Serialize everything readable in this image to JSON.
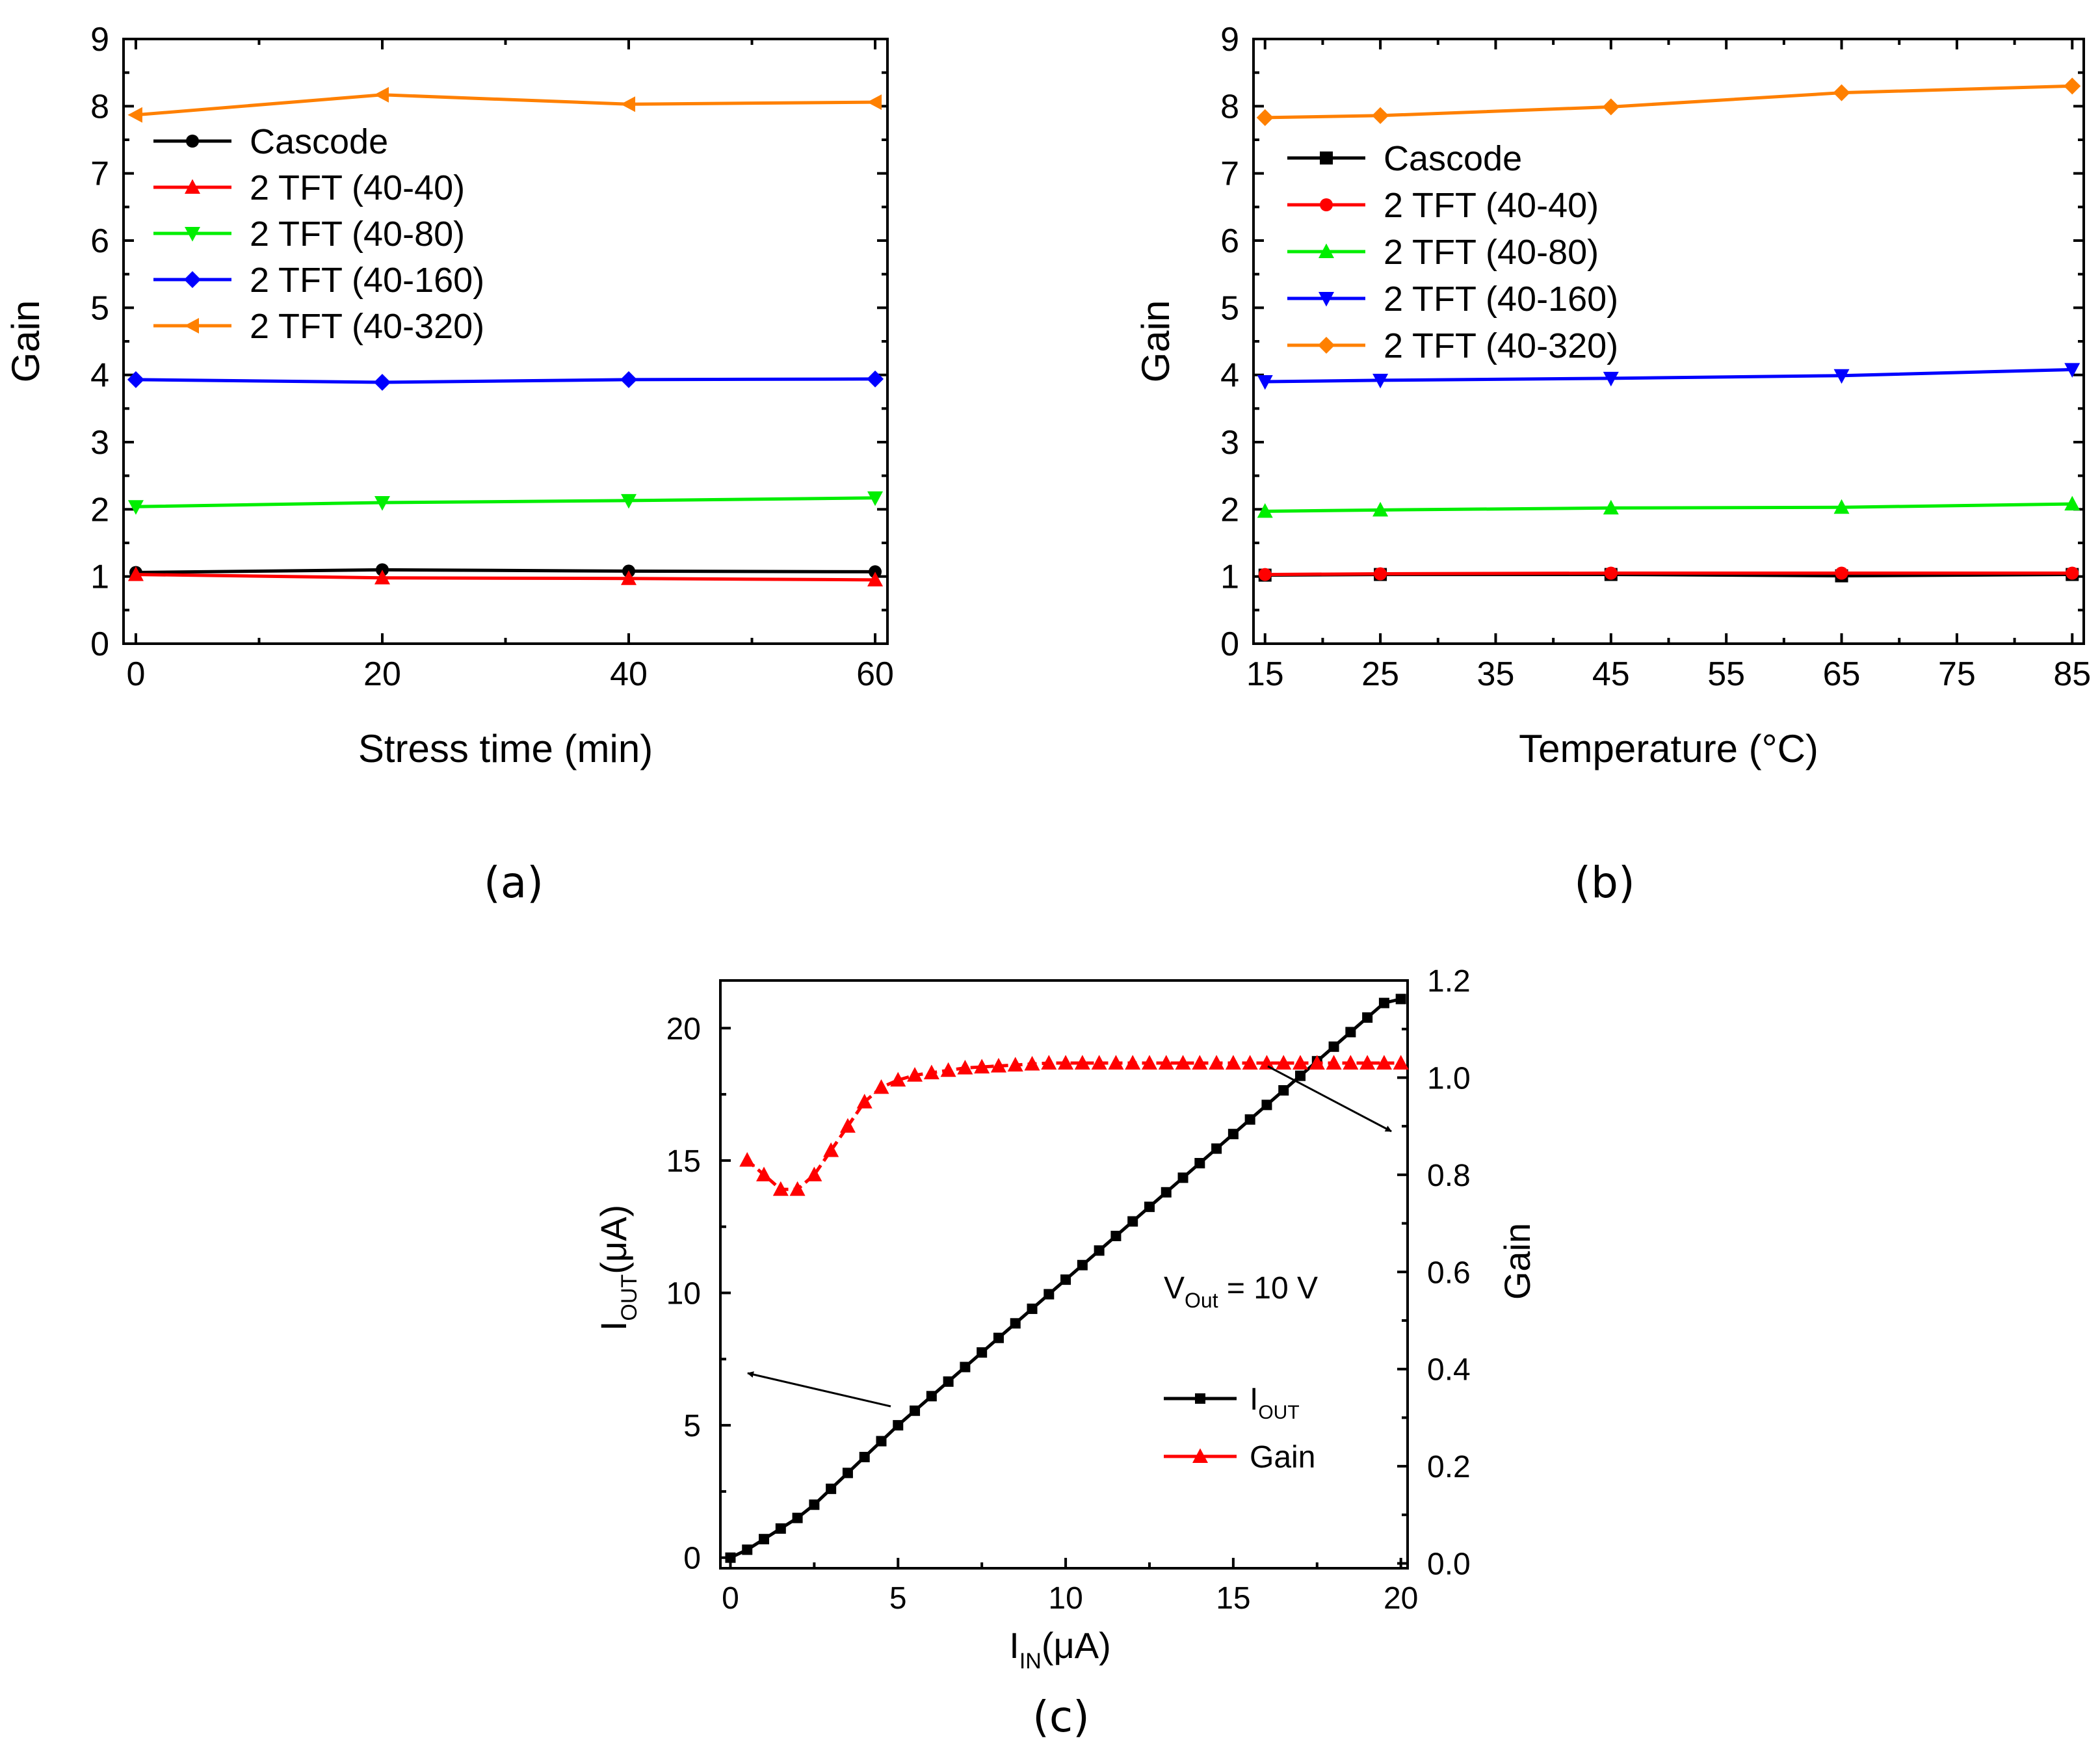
{
  "chart_data": [
    {
      "id": "a",
      "type": "line",
      "caption": "(a)",
      "xlabel": "Stress time (min)",
      "ylabel": "Gain",
      "xlim": [
        -1,
        61
      ],
      "ylim": [
        0,
        9
      ],
      "xticks": [
        0,
        20,
        40,
        60
      ],
      "yticks": [
        0,
        1,
        2,
        3,
        4,
        5,
        6,
        7,
        8,
        9
      ],
      "legend_position": "top-left",
      "x": [
        0,
        20,
        40,
        60
      ],
      "series": [
        {
          "name": "Cascode",
          "color": "#000000",
          "marker": "circle",
          "values": [
            1.06,
            1.1,
            1.08,
            1.07
          ]
        },
        {
          "name": "2 TFT (40-40)",
          "color": "#ff0000",
          "marker": "triangle-up",
          "values": [
            1.03,
            0.98,
            0.97,
            0.95
          ]
        },
        {
          "name": "2 TFT (40-80)",
          "color": "#00ee00",
          "marker": "triangle-down",
          "values": [
            2.04,
            2.1,
            2.13,
            2.17
          ]
        },
        {
          "name": "2 TFT (40-160)",
          "color": "#0000ff",
          "marker": "diamond",
          "values": [
            3.93,
            3.89,
            3.93,
            3.94
          ]
        },
        {
          "name": "2 TFT (40-320)",
          "color": "#ff8000",
          "marker": "triangle-left",
          "values": [
            7.87,
            8.17,
            8.03,
            8.06
          ]
        }
      ]
    },
    {
      "id": "b",
      "type": "line",
      "caption": "(b)",
      "xlabel": "Temperature (°C)",
      "ylabel": "Gain",
      "xlim": [
        14,
        86
      ],
      "ylim": [
        0,
        9
      ],
      "xticks": [
        15,
        25,
        35,
        45,
        55,
        65,
        75,
        85
      ],
      "yticks": [
        0,
        1,
        2,
        3,
        4,
        5,
        6,
        7,
        8,
        9
      ],
      "legend_position": "top-left",
      "x": [
        15,
        25,
        45,
        65,
        85
      ],
      "series": [
        {
          "name": "Cascode",
          "color": "#000000",
          "marker": "square",
          "values": [
            1.02,
            1.03,
            1.03,
            1.01,
            1.03
          ]
        },
        {
          "name": "2 TFT (40-40)",
          "color": "#ff0000",
          "marker": "circle",
          "values": [
            1.03,
            1.04,
            1.05,
            1.05,
            1.05
          ]
        },
        {
          "name": "2 TFT (40-80)",
          "color": "#00ee00",
          "marker": "triangle-up",
          "values": [
            1.97,
            1.99,
            2.02,
            2.03,
            2.08
          ]
        },
        {
          "name": "2 TFT (40-160)",
          "color": "#0000ff",
          "marker": "triangle-down",
          "values": [
            3.9,
            3.92,
            3.95,
            3.99,
            4.08
          ]
        },
        {
          "name": "2 TFT (40-320)",
          "color": "#ff8000",
          "marker": "diamond",
          "values": [
            7.83,
            7.86,
            7.99,
            8.2,
            8.3
          ]
        }
      ]
    },
    {
      "id": "c",
      "type": "line",
      "caption": "(c)",
      "xlabel": "I",
      "xlabel_sub": "IN",
      "xlabel_unit": "(μA)",
      "ylabel": "I",
      "ylabel_sub": "OUT",
      "ylabel_unit": "(μA)",
      "y2label": "Gain",
      "xlim": [
        -0.3,
        20.2
      ],
      "ylim": [
        -0.4,
        21.8
      ],
      "y2lim": [
        -0.01,
        1.2
      ],
      "xticks": [
        0,
        5,
        10,
        15,
        20
      ],
      "yticks": [
        0,
        5,
        10,
        15,
        20
      ],
      "y2ticks": [
        "0.0",
        "0.2",
        "0.4",
        "0.6",
        "0.8",
        "1.0",
        "1.2"
      ],
      "annotation": {
        "main": "V",
        "sub": "Out",
        "rest": " = 10 V"
      },
      "legend_position": "bottom-right",
      "series": [
        {
          "name": "I",
          "name_sub": "OUT",
          "axis": "left",
          "color": "#000000",
          "marker": "square",
          "line": "solid",
          "x_start": 0,
          "x_step": 0.5,
          "x_end": 20,
          "values_rule": "y = 0.2 + 1.16*(x-0.5) for 0<x<=2 linear start, then slope ~1.05",
          "x": [
            0,
            0.5,
            1,
            1.5,
            2,
            2.5,
            3,
            3.5,
            4,
            4.5,
            5,
            5.5,
            6,
            6.5,
            7,
            7.5,
            8,
            8.5,
            9,
            9.5,
            10,
            10.5,
            11,
            11.5,
            12,
            12.5,
            13,
            13.5,
            14,
            14.5,
            15,
            15.5,
            16,
            16.5,
            17,
            17.5,
            18,
            18.5,
            19,
            19.5,
            20
          ],
          "values": [
            0.0,
            0.3,
            0.7,
            1.1,
            1.5,
            2.0,
            2.6,
            3.2,
            3.8,
            4.4,
            5.0,
            5.55,
            6.1,
            6.65,
            7.2,
            7.75,
            8.3,
            8.85,
            9.4,
            9.95,
            10.5,
            11.05,
            11.6,
            12.15,
            12.7,
            13.25,
            13.8,
            14.35,
            14.9,
            15.45,
            16.0,
            16.55,
            17.1,
            17.65,
            18.2,
            18.75,
            19.3,
            19.85,
            20.4,
            20.95,
            21.1
          ]
        },
        {
          "name": "Gain",
          "axis": "right",
          "color": "#ff0000",
          "marker": "triangle-up",
          "line": "dashed",
          "x": [
            0.5,
            1,
            1.5,
            2,
            2.5,
            3,
            3.5,
            4,
            4.5,
            5,
            5.5,
            6,
            6.5,
            7,
            7.5,
            8,
            8.5,
            9,
            9.5,
            10,
            10.5,
            11,
            11.5,
            12,
            12.5,
            13,
            13.5,
            14,
            14.5,
            15,
            15.5,
            16,
            16.5,
            17,
            17.5,
            18,
            18.5,
            19,
            19.5,
            20
          ],
          "values": [
            0.83,
            0.8,
            0.77,
            0.77,
            0.8,
            0.85,
            0.9,
            0.95,
            0.98,
            0.995,
            1.005,
            1.01,
            1.015,
            1.02,
            1.022,
            1.024,
            1.026,
            1.028,
            1.03,
            1.03,
            1.03,
            1.03,
            1.03,
            1.03,
            1.03,
            1.03,
            1.03,
            1.03,
            1.03,
            1.03,
            1.03,
            1.03,
            1.03,
            1.03,
            1.03,
            1.03,
            1.03,
            1.03,
            1.03,
            1.03
          ]
        }
      ]
    }
  ]
}
